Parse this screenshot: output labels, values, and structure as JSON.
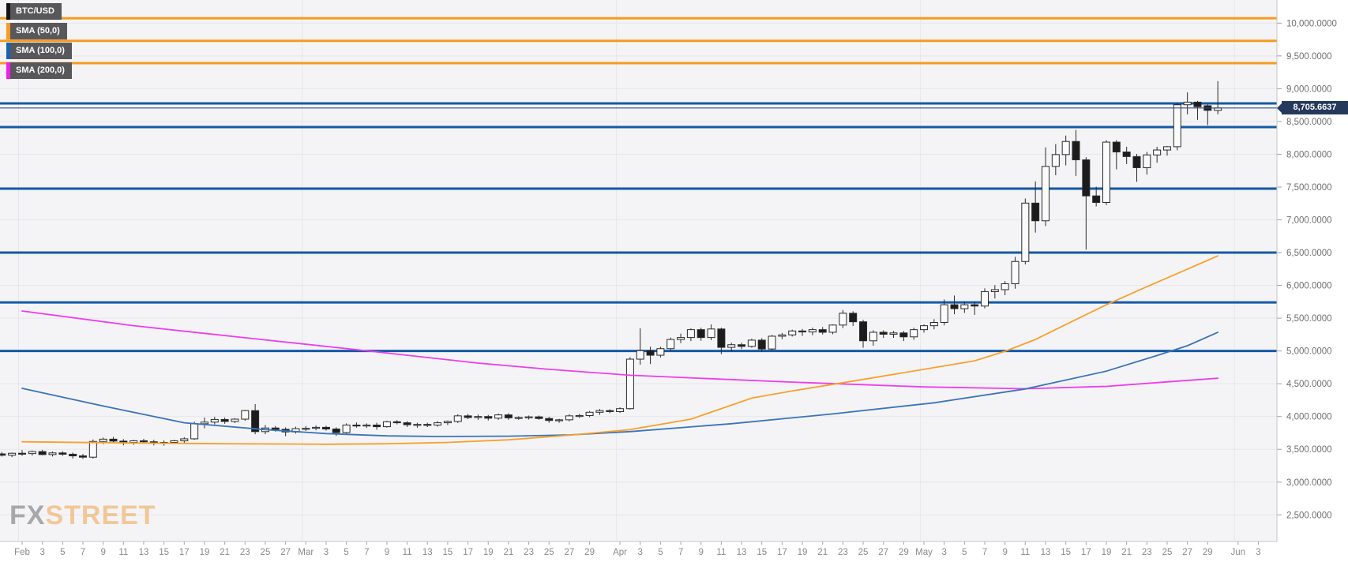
{
  "chart_data": {
    "type": "candlestick",
    "symbol": "BTC/USD",
    "timeframe": "daily",
    "legend": [
      {
        "label": "BTC/USD",
        "color": "#141414"
      },
      {
        "label": "SMA (50,0)",
        "color": "#f79a1f"
      },
      {
        "label": "SMA (100,0)",
        "color": "#1663b5"
      },
      {
        "label": "SMA (200,0)",
        "color": "#f01df0"
      }
    ],
    "watermark": {
      "part1": "FX",
      "part2": "STREET"
    },
    "last_price": {
      "value": 8705.6637,
      "label": "8,705.6637",
      "line_color": "#2e4d7d",
      "badge_color": "#24395b"
    },
    "y_axis": {
      "min": 2500,
      "max": 10000,
      "step": 500,
      "ticks": [
        {
          "v": 10000,
          "label": "10,000.0000"
        },
        {
          "v": 9500,
          "label": "9,500.0000"
        },
        {
          "v": 9000,
          "label": "9,000.0000"
        },
        {
          "v": 8500,
          "label": "8,500.0000"
        },
        {
          "v": 8000,
          "label": "8,000.0000"
        },
        {
          "v": 7500,
          "label": "7,500.0000"
        },
        {
          "v": 7000,
          "label": "7,000.0000"
        },
        {
          "v": 6500,
          "label": "6,500.0000"
        },
        {
          "v": 6000,
          "label": "6,000.0000"
        },
        {
          "v": 5500,
          "label": "5,500.0000"
        },
        {
          "v": 5000,
          "label": "5,000.0000"
        },
        {
          "v": 4500,
          "label": "4,500.0000"
        },
        {
          "v": 4000,
          "label": "4,000.0000"
        },
        {
          "v": 3500,
          "label": "3,500.0000"
        },
        {
          "v": 3000,
          "label": "3,000.0000"
        },
        {
          "v": 2500,
          "label": "2,500.0000"
        }
      ]
    },
    "x_axis": {
      "first_candle_day": -2,
      "month_line_days": [
        0,
        28,
        59,
        89,
        120
      ],
      "ticks": [
        {
          "d": 0,
          "label": "Feb"
        },
        {
          "d": 2,
          "label": "3"
        },
        {
          "d": 4,
          "label": "5"
        },
        {
          "d": 6,
          "label": "7"
        },
        {
          "d": 8,
          "label": "9"
        },
        {
          "d": 10,
          "label": "11"
        },
        {
          "d": 12,
          "label": "13"
        },
        {
          "d": 14,
          "label": "15"
        },
        {
          "d": 16,
          "label": "17"
        },
        {
          "d": 18,
          "label": "19"
        },
        {
          "d": 20,
          "label": "21"
        },
        {
          "d": 22,
          "label": "23"
        },
        {
          "d": 24,
          "label": "25"
        },
        {
          "d": 26,
          "label": "27"
        },
        {
          "d": 28,
          "label": "Mar"
        },
        {
          "d": 30,
          "label": "3"
        },
        {
          "d": 32,
          "label": "5"
        },
        {
          "d": 34,
          "label": "7"
        },
        {
          "d": 36,
          "label": "9"
        },
        {
          "d": 38,
          "label": "11"
        },
        {
          "d": 40,
          "label": "13"
        },
        {
          "d": 42,
          "label": "15"
        },
        {
          "d": 44,
          "label": "17"
        },
        {
          "d": 46,
          "label": "19"
        },
        {
          "d": 48,
          "label": "21"
        },
        {
          "d": 50,
          "label": "23"
        },
        {
          "d": 52,
          "label": "25"
        },
        {
          "d": 54,
          "label": "27"
        },
        {
          "d": 56,
          "label": "29"
        },
        {
          "d": 59,
          "label": "Apr"
        },
        {
          "d": 61,
          "label": "3"
        },
        {
          "d": 63,
          "label": "5"
        },
        {
          "d": 65,
          "label": "7"
        },
        {
          "d": 67,
          "label": "9"
        },
        {
          "d": 69,
          "label": "11"
        },
        {
          "d": 71,
          "label": "13"
        },
        {
          "d": 73,
          "label": "15"
        },
        {
          "d": 75,
          "label": "17"
        },
        {
          "d": 77,
          "label": "19"
        },
        {
          "d": 79,
          "label": "21"
        },
        {
          "d": 81,
          "label": "23"
        },
        {
          "d": 83,
          "label": "25"
        },
        {
          "d": 85,
          "label": "27"
        },
        {
          "d": 87,
          "label": "29"
        },
        {
          "d": 89,
          "label": "May"
        },
        {
          "d": 91,
          "label": "3"
        },
        {
          "d": 93,
          "label": "5"
        },
        {
          "d": 95,
          "label": "7"
        },
        {
          "d": 97,
          "label": "9"
        },
        {
          "d": 99,
          "label": "11"
        },
        {
          "d": 101,
          "label": "13"
        },
        {
          "d": 103,
          "label": "15"
        },
        {
          "d": 105,
          "label": "17"
        },
        {
          "d": 107,
          "label": "19"
        },
        {
          "d": 109,
          "label": "21"
        },
        {
          "d": 111,
          "label": "23"
        },
        {
          "d": 113,
          "label": "25"
        },
        {
          "d": 115,
          "label": "27"
        },
        {
          "d": 117,
          "label": "29"
        },
        {
          "d": 120,
          "label": "Jun"
        },
        {
          "d": 122,
          "label": "3"
        }
      ]
    },
    "levels": [
      {
        "price": 10075,
        "color": "#f79a1f"
      },
      {
        "price": 9730,
        "color": "#f79a1f"
      },
      {
        "price": 9390,
        "color": "#f79a1f"
      },
      {
        "price": 8775,
        "color": "#1559a5"
      },
      {
        "price": 8415,
        "color": "#1559a5"
      },
      {
        "price": 7475,
        "color": "#1559a5"
      },
      {
        "price": 6500,
        "color": "#1559a5"
      },
      {
        "price": 5740,
        "color": "#1559a5"
      },
      {
        "price": 5000,
        "color": "#1559a5"
      }
    ],
    "sma50": [
      [
        0,
        3615
      ],
      [
        10,
        3598
      ],
      [
        20,
        3585
      ],
      [
        30,
        3578
      ],
      [
        36,
        3585
      ],
      [
        42,
        3605
      ],
      [
        48,
        3645
      ],
      [
        54,
        3715
      ],
      [
        60,
        3800
      ],
      [
        66,
        3960
      ],
      [
        72,
        4280
      ],
      [
        76,
        4390
      ],
      [
        82,
        4540
      ],
      [
        89,
        4720
      ],
      [
        94,
        4850
      ],
      [
        97,
        4995
      ],
      [
        100,
        5175
      ],
      [
        104,
        5480
      ],
      [
        107,
        5705
      ],
      [
        111,
        5980
      ],
      [
        114,
        6180
      ],
      [
        118,
        6450
      ]
    ],
    "sma100": [
      [
        0,
        4430
      ],
      [
        8,
        4160
      ],
      [
        16,
        3905
      ],
      [
        24,
        3800
      ],
      [
        30,
        3740
      ],
      [
        36,
        3705
      ],
      [
        41,
        3695
      ],
      [
        48,
        3700
      ],
      [
        54,
        3720
      ],
      [
        60,
        3770
      ],
      [
        70,
        3890
      ],
      [
        80,
        4040
      ],
      [
        90,
        4210
      ],
      [
        99,
        4420
      ],
      [
        107,
        4692
      ],
      [
        112,
        4930
      ],
      [
        115,
        5080
      ],
      [
        118,
        5283
      ]
    ],
    "sma200": [
      [
        0,
        5610
      ],
      [
        11,
        5386
      ],
      [
        22,
        5202
      ],
      [
        33,
        5020
      ],
      [
        45,
        4815
      ],
      [
        52,
        4720
      ],
      [
        60,
        4630
      ],
      [
        68,
        4577
      ],
      [
        76,
        4525
      ],
      [
        89,
        4452
      ],
      [
        99,
        4424
      ],
      [
        107,
        4460
      ],
      [
        113,
        4529
      ],
      [
        118,
        4584
      ]
    ],
    "candles": [
      [
        3430,
        3460,
        3390,
        3410
      ],
      [
        3410,
        3450,
        3380,
        3440
      ],
      [
        3440,
        3490,
        3400,
        3435
      ],
      [
        3435,
        3480,
        3405,
        3465
      ],
      [
        3465,
        3490,
        3410,
        3420
      ],
      [
        3420,
        3465,
        3390,
        3445
      ],
      [
        3445,
        3470,
        3400,
        3425
      ],
      [
        3425,
        3450,
        3360,
        3400
      ],
      [
        3400,
        3430,
        3355,
        3380
      ],
      [
        3380,
        3650,
        3360,
        3620
      ],
      [
        3620,
        3680,
        3580,
        3655
      ],
      [
        3655,
        3690,
        3600,
        3625
      ],
      [
        3625,
        3655,
        3560,
        3605
      ],
      [
        3605,
        3645,
        3570,
        3630
      ],
      [
        3630,
        3660,
        3590,
        3615
      ],
      [
        3615,
        3645,
        3560,
        3595
      ],
      [
        3595,
        3635,
        3555,
        3605
      ],
      [
        3605,
        3645,
        3580,
        3630
      ],
      [
        3630,
        3685,
        3600,
        3660
      ],
      [
        3660,
        3920,
        3645,
        3890
      ],
      [
        3890,
        3985,
        3820,
        3915
      ],
      [
        3915,
        3995,
        3880,
        3955
      ],
      [
        3955,
        3985,
        3890,
        3925
      ],
      [
        3925,
        3975,
        3900,
        3960
      ],
      [
        3960,
        4100,
        3935,
        4090
      ],
      [
        4090,
        4190,
        3730,
        3770
      ],
      [
        3770,
        3870,
        3730,
        3825
      ],
      [
        3825,
        3855,
        3770,
        3805
      ],
      [
        3805,
        3835,
        3700,
        3765
      ],
      [
        3765,
        3845,
        3740,
        3815
      ],
      [
        3815,
        3855,
        3780,
        3820
      ],
      [
        3820,
        3865,
        3790,
        3835
      ],
      [
        3835,
        3860,
        3785,
        3810
      ],
      [
        3810,
        3835,
        3705,
        3755
      ],
      [
        3755,
        3895,
        3740,
        3870
      ],
      [
        3870,
        3910,
        3830,
        3860
      ],
      [
        3860,
        3895,
        3825,
        3870
      ],
      [
        3870,
        3905,
        3800,
        3845
      ],
      [
        3845,
        3935,
        3830,
        3920
      ],
      [
        3920,
        3945,
        3880,
        3905
      ],
      [
        3905,
        3930,
        3840,
        3875
      ],
      [
        3875,
        3905,
        3830,
        3880
      ],
      [
        3880,
        3905,
        3840,
        3870
      ],
      [
        3870,
        3930,
        3845,
        3905
      ],
      [
        3905,
        3940,
        3870,
        3925
      ],
      [
        3925,
        4035,
        3900,
        4010
      ],
      [
        4010,
        4040,
        3960,
        3985
      ],
      [
        3985,
        4030,
        3950,
        4000
      ],
      [
        4000,
        4025,
        3940,
        3975
      ],
      [
        3975,
        4045,
        3950,
        4025
      ],
      [
        4025,
        4050,
        3950,
        3980
      ],
      [
        3980,
        4005,
        3950,
        3985
      ],
      [
        3985,
        4015,
        3955,
        3995
      ],
      [
        3995,
        4015,
        3950,
        3970
      ],
      [
        3970,
        3995,
        3905,
        3940
      ],
      [
        3940,
        3965,
        3905,
        3950
      ],
      [
        3950,
        4035,
        3925,
        4010
      ],
      [
        4010,
        4040,
        3980,
        4015
      ],
      [
        4015,
        4085,
        3990,
        4065
      ],
      [
        4065,
        4115,
        4025,
        4090
      ],
      [
        4090,
        4110,
        4050,
        4075
      ],
      [
        4075,
        4140,
        4055,
        4120
      ],
      [
        4120,
        4905,
        4105,
        4875
      ],
      [
        4875,
        5345,
        4790,
        5005
      ],
      [
        5005,
        5065,
        4800,
        4935
      ],
      [
        4935,
        5065,
        4900,
        5035
      ],
      [
        5035,
        5205,
        5000,
        5175
      ],
      [
        5175,
        5265,
        5120,
        5205
      ],
      [
        5205,
        5345,
        5150,
        5325
      ],
      [
        5325,
        5355,
        5155,
        5205
      ],
      [
        5205,
        5405,
        5165,
        5335
      ],
      [
        5335,
        5355,
        4950,
        5055
      ],
      [
        5055,
        5125,
        4990,
        5095
      ],
      [
        5095,
        5125,
        5030,
        5070
      ],
      [
        5070,
        5185,
        5050,
        5165
      ],
      [
        5165,
        5195,
        4985,
        5030
      ],
      [
        5030,
        5245,
        5010,
        5225
      ],
      [
        5225,
        5275,
        5180,
        5245
      ],
      [
        5245,
        5325,
        5220,
        5305
      ],
      [
        5305,
        5335,
        5230,
        5290
      ],
      [
        5290,
        5355,
        5240,
        5325
      ],
      [
        5325,
        5365,
        5250,
        5285
      ],
      [
        5285,
        5405,
        5255,
        5395
      ],
      [
        5395,
        5625,
        5350,
        5575
      ],
      [
        5575,
        5605,
        5380,
        5445
      ],
      [
        5445,
        5475,
        5050,
        5155
      ],
      [
        5155,
        5315,
        5080,
        5285
      ],
      [
        5285,
        5315,
        5200,
        5255
      ],
      [
        5255,
        5305,
        5200,
        5275
      ],
      [
        5275,
        5305,
        5150,
        5215
      ],
      [
        5215,
        5355,
        5170,
        5325
      ],
      [
        5325,
        5405,
        5280,
        5385
      ],
      [
        5385,
        5485,
        5330,
        5435
      ],
      [
        5435,
        5785,
        5390,
        5705
      ],
      [
        5705,
        5845,
        5560,
        5645
      ],
      [
        5645,
        5755,
        5580,
        5705
      ],
      [
        5705,
        5755,
        5550,
        5685
      ],
      [
        5685,
        5955,
        5650,
        5905
      ],
      [
        5905,
        6005,
        5800,
        5935
      ],
      [
        5935,
        6065,
        5850,
        6025
      ],
      [
        6025,
        6435,
        5950,
        6365
      ],
      [
        6365,
        7325,
        6320,
        7255
      ],
      [
        7255,
        7585,
        6805,
        6985
      ],
      [
        6985,
        8105,
        6905,
        7815
      ],
      [
        7815,
        8155,
        7680,
        7995
      ],
      [
        7995,
        8285,
        7830,
        8195
      ],
      [
        8195,
        8370,
        7670,
        7915
      ],
      [
        7915,
        7955,
        6545,
        7365
      ],
      [
        7365,
        7505,
        7205,
        7265
      ],
      [
        7265,
        8215,
        7225,
        8185
      ],
      [
        8185,
        8215,
        7770,
        8035
      ],
      [
        8035,
        8115,
        7850,
        7965
      ],
      [
        7965,
        8005,
        7580,
        7795
      ],
      [
        7795,
        8035,
        7690,
        7990
      ],
      [
        7990,
        8115,
        7870,
        8065
      ],
      [
        8065,
        8125,
        7980,
        8115
      ],
      [
        8115,
        8785,
        8060,
        8755
      ],
      [
        8755,
        8945,
        8610,
        8795
      ],
      [
        8795,
        8815,
        8525,
        8725
      ],
      [
        8740,
        8765,
        8445,
        8670
      ],
      [
        8670,
        9115,
        8610,
        8705.66
      ]
    ],
    "style": {
      "plot_bg": "#f4f4f6",
      "grid_color": "#e7e7eb",
      "border_color": "#c6c6cb",
      "candle_up_fill": "#fbfbfc",
      "candle_down_fill": "#1c1c1c",
      "candle_stroke": "#2a2a2a",
      "sma50_color": "#f9a02b",
      "sma100_color": "#3a73b8",
      "sma200_color": "#ee3cee",
      "y_label_color": "#6e6e72",
      "x_label_color": "#8a8a8e",
      "tick_color": "#a0a0a5"
    }
  }
}
